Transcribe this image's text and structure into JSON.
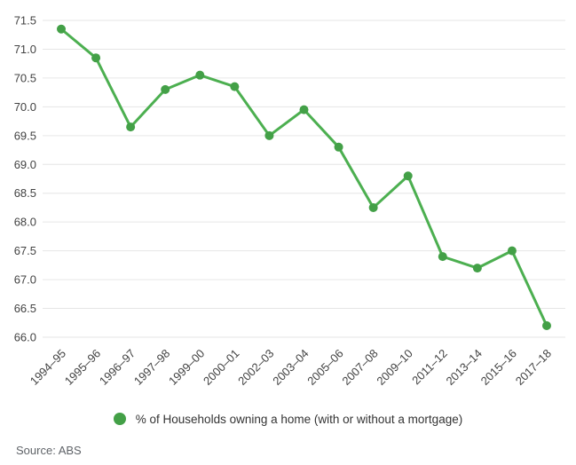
{
  "chart_data": {
    "type": "line",
    "title": "",
    "categories": [
      "1994–95",
      "1995–96",
      "1996–97",
      "1997–98",
      "1999–00",
      "2000–01",
      "2002–03",
      "2003–04",
      "2005–06",
      "2007–08",
      "2009–10",
      "2011–12",
      "2013–14",
      "2015–16",
      "2017–18"
    ],
    "series": [
      {
        "name": "% of Households owning a home (with or without a mortgage)",
        "values": [
          71.35,
          70.85,
          69.65,
          70.3,
          70.55,
          70.35,
          69.5,
          69.95,
          69.3,
          68.25,
          68.8,
          67.4,
          67.2,
          67.5,
          66.2
        ]
      }
    ],
    "xlabel": "",
    "ylabel": "",
    "ylim": [
      66.0,
      71.5
    ],
    "yticks": [
      "71.5",
      "71.0",
      "70.5",
      "70.0",
      "69.5",
      "69.0",
      "68.5",
      "68.0",
      "67.5",
      "67.0",
      "66.5",
      "66.0"
    ],
    "grid": "horizontal",
    "legend_position": "bottom",
    "line_color": "#4caf50",
    "point_color": "#43a047",
    "gridline_color": "#e6e6e6",
    "tick_label_color": "#424242"
  },
  "legend": {
    "label": "% of Households owning a home (with or without a mortgage)"
  },
  "source": {
    "label": "Source: ABS"
  }
}
